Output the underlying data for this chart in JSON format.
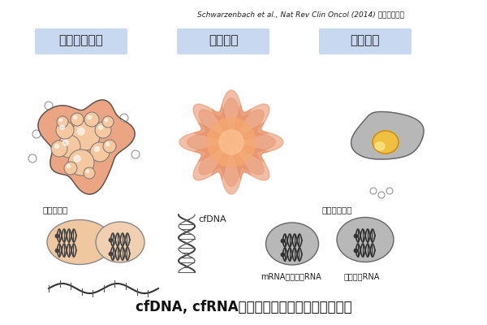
{
  "bg_color": "#ffffff",
  "citation": "Schwarzenbach et al., Nat Rev Clin Oncol (2014) を参考に作成",
  "title": "cfDNA, cfRNAの由来と液体生検としての利用",
  "labels": [
    "アポトーシス",
    "細胞壊死",
    "細胞分泌"
  ],
  "sub_labels": [
    "細胞外小胞",
    "cfDNA",
    "エキソソーム",
    "mRNA、機能的RNA",
    "マイクロRNA"
  ],
  "cell_color_apoptosis": "#E8956D",
  "cell_color_necrosis": "#E8956D",
  "cell_color_secretion": "#A0A0A0",
  "nucleus_color": "#F0C040",
  "vesicle_bg": "#F0C8A0",
  "vesicle_bg2": "#C0C0C0",
  "label_bg": "#C8D8F0"
}
